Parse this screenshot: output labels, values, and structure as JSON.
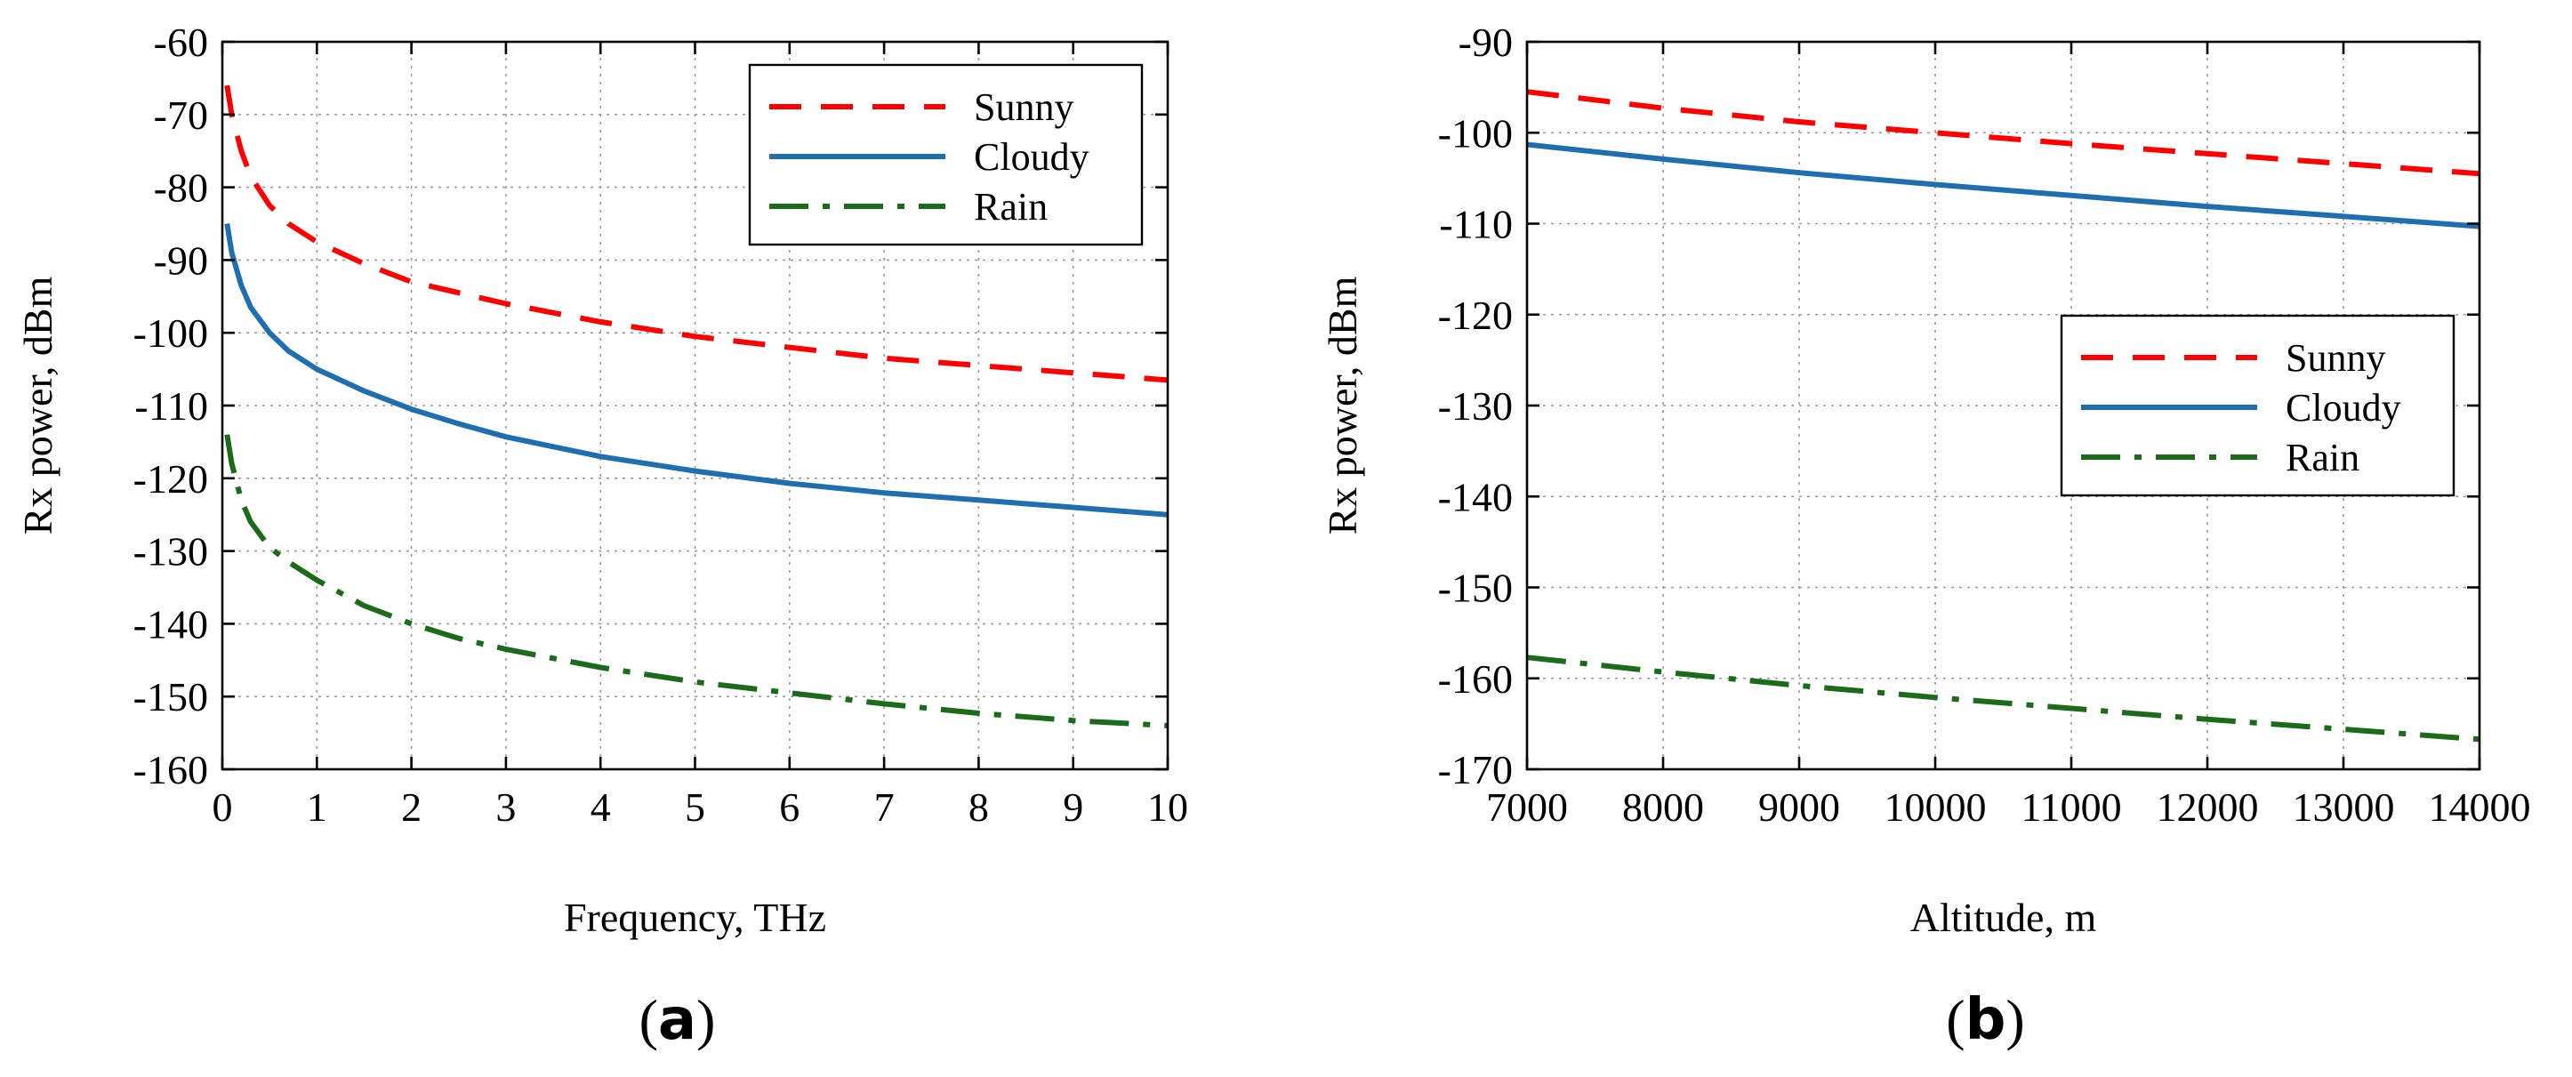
{
  "chart_data": [
    {
      "type": "line",
      "panel": "(a)",
      "panel_letter": "a",
      "xlabel": "Frequency, THz",
      "ylabel": "Rx power, dBm",
      "xlim": [
        0,
        10
      ],
      "ylim": [
        -160,
        -60
      ],
      "xticks": [
        0,
        1,
        2,
        3,
        4,
        5,
        6,
        7,
        8,
        9,
        10
      ],
      "yticks": [
        -60,
        -70,
        -80,
        -90,
        -100,
        -110,
        -120,
        -130,
        -140,
        -150,
        -160
      ],
      "grid": true,
      "legend_position": "top-right",
      "series": [
        {
          "name": "Sunny",
          "color": "#ff0000",
          "style": "dashed",
          "x": [
            0.05,
            0.1,
            0.2,
            0.3,
            0.5,
            0.7,
            1,
            1.5,
            2,
            2.5,
            3,
            4,
            5,
            6,
            7,
            8,
            9,
            10
          ],
          "y": [
            -66,
            -70,
            -75,
            -78.5,
            -82.5,
            -85,
            -87.5,
            -90.5,
            -93,
            -94.5,
            -96,
            -98.5,
            -100.5,
            -102,
            -103.5,
            -104.5,
            -105.5,
            -106.5
          ]
        },
        {
          "name": "Cloudy",
          "color": "#1f6fb0",
          "style": "solid",
          "x": [
            0.05,
            0.1,
            0.2,
            0.3,
            0.5,
            0.7,
            1,
            1.5,
            2,
            2.5,
            3,
            4,
            5,
            6,
            7,
            8,
            9,
            10
          ],
          "y": [
            -85,
            -89,
            -93.5,
            -96.5,
            -100,
            -102.5,
            -105,
            -108,
            -110.5,
            -112.5,
            -114.3,
            -117,
            -119,
            -120.7,
            -122,
            -123,
            -124,
            -125
          ]
        },
        {
          "name": "Rain",
          "color": "#1b6b1b",
          "style": "dashdot",
          "x": [
            0.05,
            0.1,
            0.2,
            0.3,
            0.5,
            0.7,
            1,
            1.5,
            2,
            2.5,
            3,
            4,
            5,
            6,
            7,
            8,
            9,
            10
          ],
          "y": [
            -114,
            -118,
            -123,
            -126,
            -129.5,
            -131.5,
            -134,
            -137.5,
            -140,
            -142,
            -143.5,
            -146,
            -148,
            -149.5,
            -151,
            -152.3,
            -153.3,
            -154
          ]
        }
      ]
    },
    {
      "type": "line",
      "panel": "(b)",
      "panel_letter": "b",
      "xlabel": "Altitude, m",
      "ylabel": "Rx power, dBm",
      "xlim": [
        7000,
        14000
      ],
      "ylim": [
        -170,
        -90
      ],
      "xticks": [
        7000,
        8000,
        9000,
        10000,
        11000,
        12000,
        13000,
        14000
      ],
      "yticks": [
        -90,
        -100,
        -110,
        -120,
        -130,
        -140,
        -150,
        -160,
        -170
      ],
      "grid": true,
      "legend_position": "center-right",
      "series": [
        {
          "name": "Sunny",
          "color": "#ff0000",
          "style": "dashed",
          "x": [
            7000,
            8000,
            9000,
            10000,
            11000,
            12000,
            13000,
            14000
          ],
          "y": [
            -95.5,
            -97.3,
            -98.8,
            -100,
            -101.2,
            -102.3,
            -103.4,
            -104.5
          ]
        },
        {
          "name": "Cloudy",
          "color": "#1f6fb0",
          "style": "solid",
          "x": [
            7000,
            8000,
            9000,
            10000,
            11000,
            12000,
            13000,
            14000
          ],
          "y": [
            -101.3,
            -102.9,
            -104.4,
            -105.7,
            -106.9,
            -108.1,
            -109.2,
            -110.3
          ]
        },
        {
          "name": "Rain",
          "color": "#1b6b1b",
          "style": "dashdot",
          "x": [
            7000,
            8000,
            9000,
            10000,
            11000,
            12000,
            13000,
            14000
          ],
          "y": [
            -157.7,
            -159.3,
            -160.8,
            -162.1,
            -163.3,
            -164.5,
            -165.6,
            -166.7
          ]
        }
      ]
    }
  ]
}
